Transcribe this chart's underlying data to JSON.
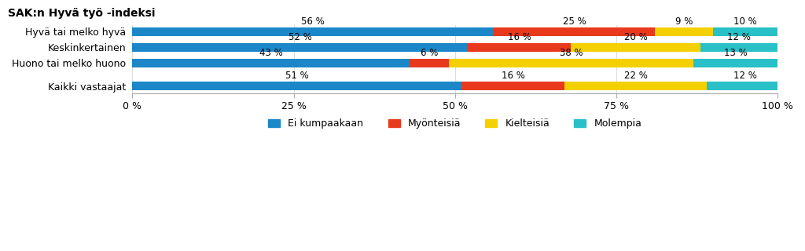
{
  "title": "SAK:n Hyvä työ -indeksi",
  "categories": [
    "Hyvä tai melko hyvä",
    "Keskinkertainen",
    "Huono tai melko huono",
    "Kaikki vastaajat"
  ],
  "series": {
    "Ei kumpaakaan": [
      56,
      52,
      43,
      51
    ],
    "Myönteisiä": [
      25,
      16,
      6,
      16
    ],
    "Kielteisiä": [
      9,
      20,
      38,
      22
    ],
    "Molempia": [
      10,
      12,
      13,
      12
    ]
  },
  "colors": {
    "Ei kumpaakaan": "#1B87C8",
    "Myönteisiä": "#E8391D",
    "Kielteisiä": "#F5D000",
    "Molempia": "#29C0C7"
  },
  "xticks": [
    0,
    25,
    50,
    75,
    100
  ],
  "xlim": [
    0,
    100
  ],
  "bar_height": 0.55,
  "background_color": "#ffffff",
  "label_fontsize": 8.5,
  "title_fontsize": 10,
  "tick_fontsize": 9,
  "legend_fontsize": 9
}
